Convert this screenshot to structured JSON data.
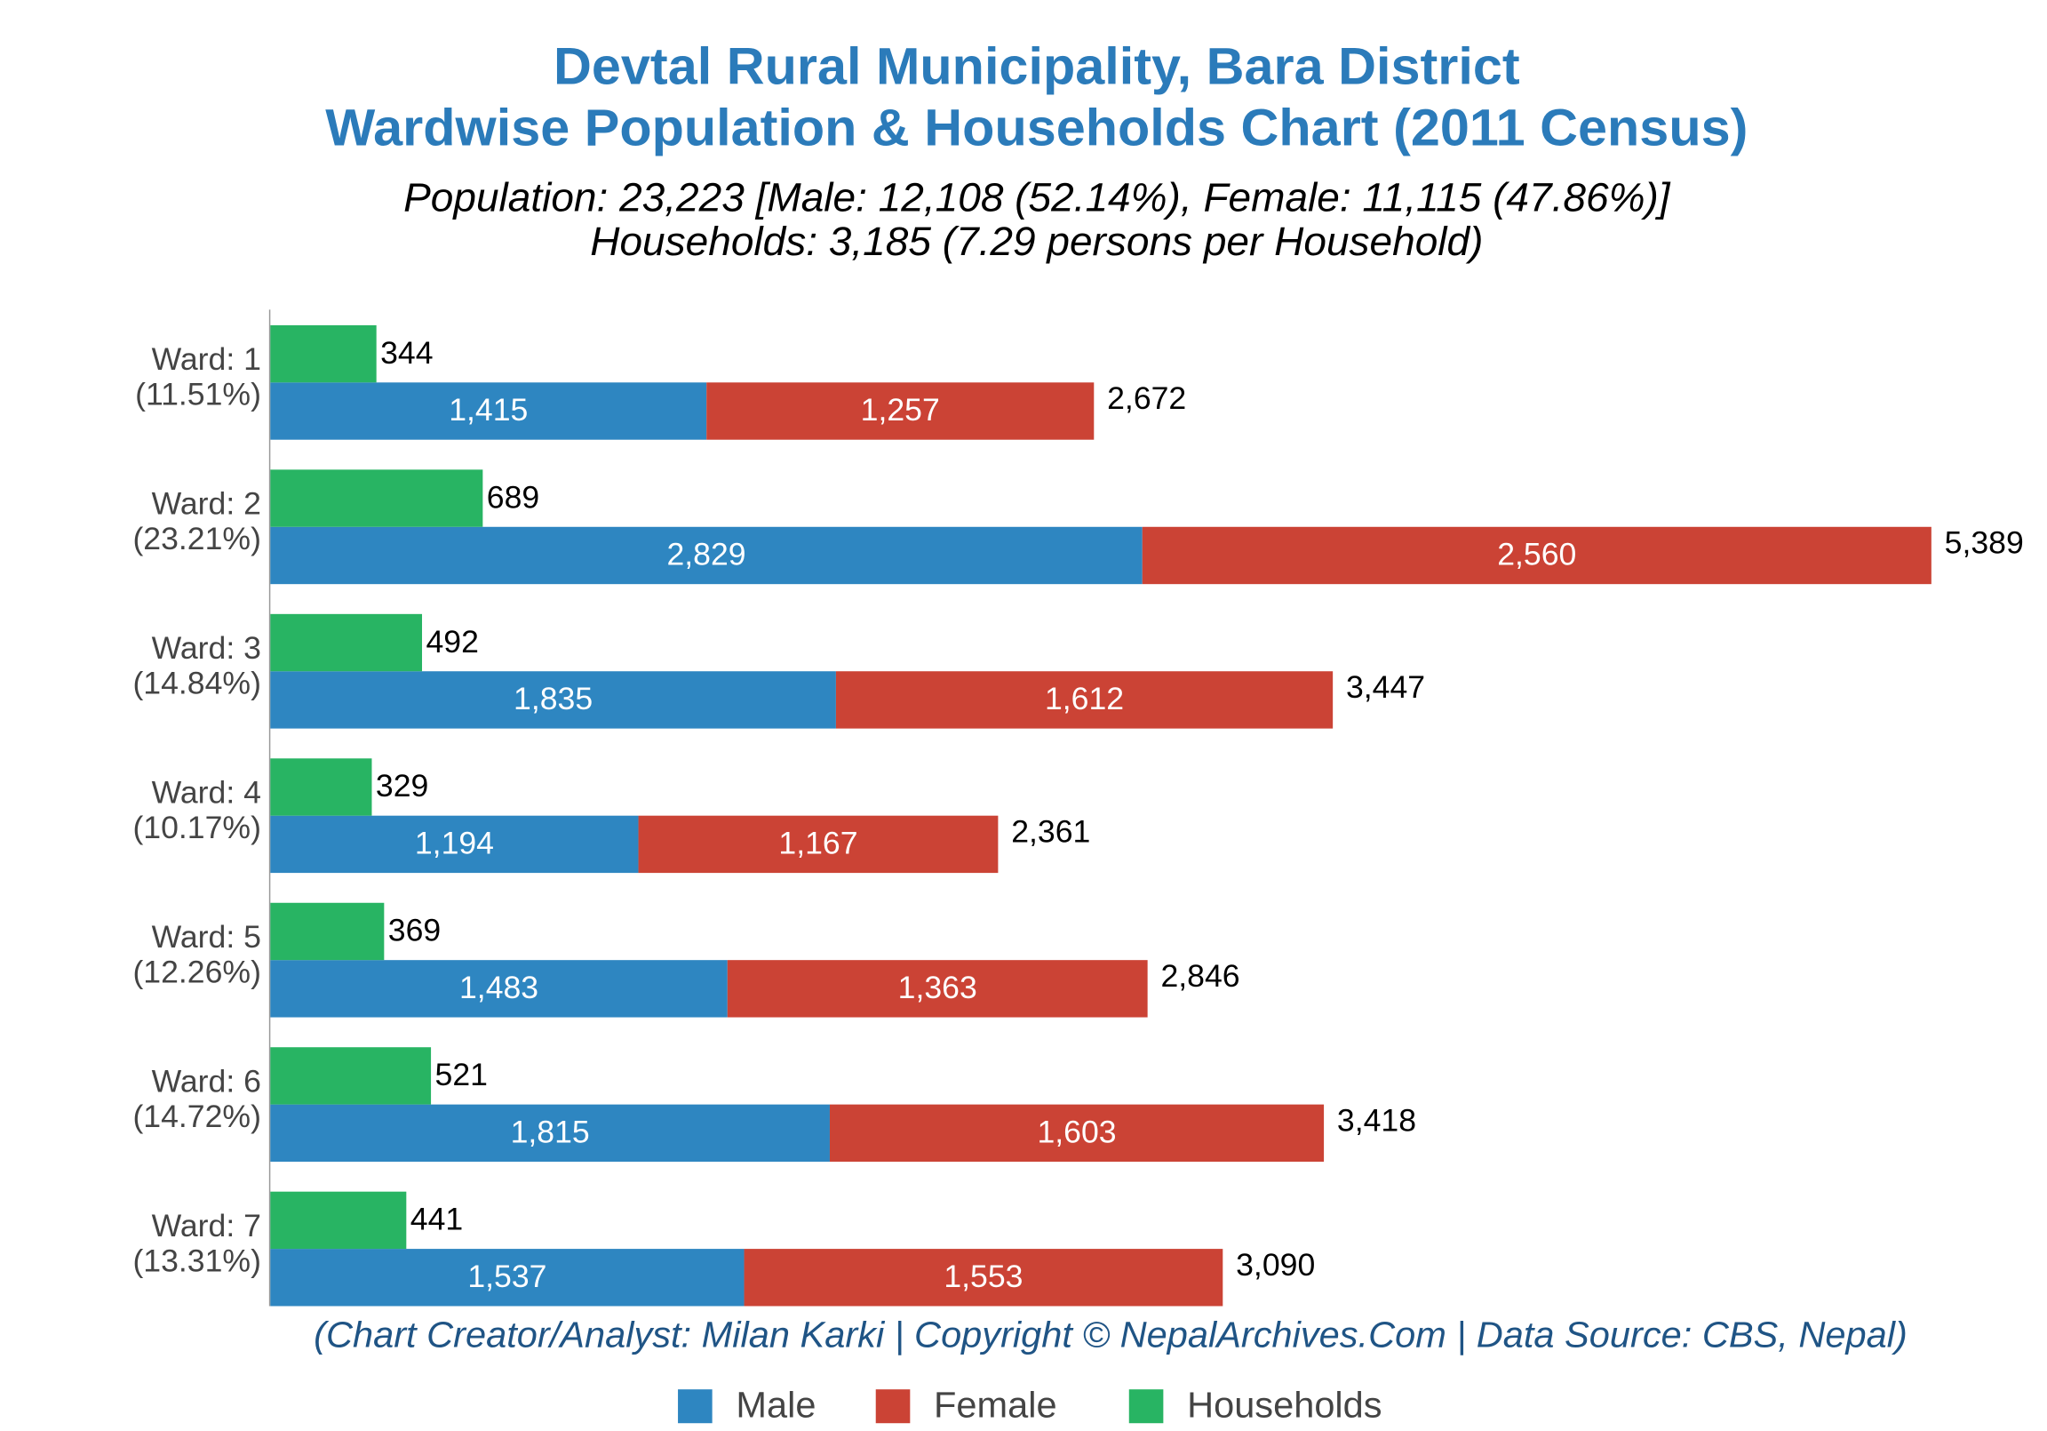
{
  "chart_data": {
    "type": "bar",
    "orientation": "horizontal",
    "title": [
      "Devtal Rural Municipality, Bara District",
      "Wardwise Population & Households Chart (2011 Census)"
    ],
    "subtitle": [
      "Population: 23,223 [Male: 12,108 (52.14%), Female: 11,115 (47.86%)]",
      "Households: 3,185 (7.29 persons per Household)"
    ],
    "annotation": "(Chart Creator/Analyst: Milan Karki | Copyright © NepalArchives.Com | Data Source: CBS, Nepal)",
    "categories": [
      "Ward: 1",
      "Ward: 2",
      "Ward: 3",
      "Ward: 4",
      "Ward: 5",
      "Ward: 6",
      "Ward: 7"
    ],
    "category_shares": [
      "(11.51%)",
      "(23.21%)",
      "(14.84%)",
      "(10.17%)",
      "(12.26%)",
      "(14.72%)",
      "(13.31%)"
    ],
    "series": [
      {
        "name": "Male",
        "color": "#2e86c1",
        "stack": "population",
        "values": [
          1415,
          2829,
          1835,
          1194,
          1483,
          1815,
          1537
        ],
        "value_labels": [
          "1,415",
          "2,829",
          "1,835",
          "1,194",
          "1,483",
          "1,815",
          "1,537"
        ]
      },
      {
        "name": "Female",
        "color": "#cb4335",
        "stack": "population",
        "values": [
          1257,
          2560,
          1612,
          1167,
          1363,
          1603,
          1553
        ],
        "value_labels": [
          "1,257",
          "2,560",
          "1,612",
          "1,167",
          "1,363",
          "1,603",
          "1,553"
        ]
      },
      {
        "name": "Households",
        "color": "#28b463",
        "stack": "households",
        "values": [
          344,
          689,
          492,
          329,
          369,
          521,
          441
        ],
        "value_labels": [
          "344",
          "689",
          "492",
          "329",
          "369",
          "521",
          "441"
        ]
      }
    ],
    "totals": [
      2672,
      5389,
      3447,
      2361,
      2846,
      3418,
      3090
    ],
    "total_labels": [
      "2,672",
      "5,389",
      "3,447",
      "2,361",
      "2,846",
      "3,418",
      "3,090"
    ],
    "xlim": [
      0,
      5700
    ],
    "legend": "bottom"
  }
}
